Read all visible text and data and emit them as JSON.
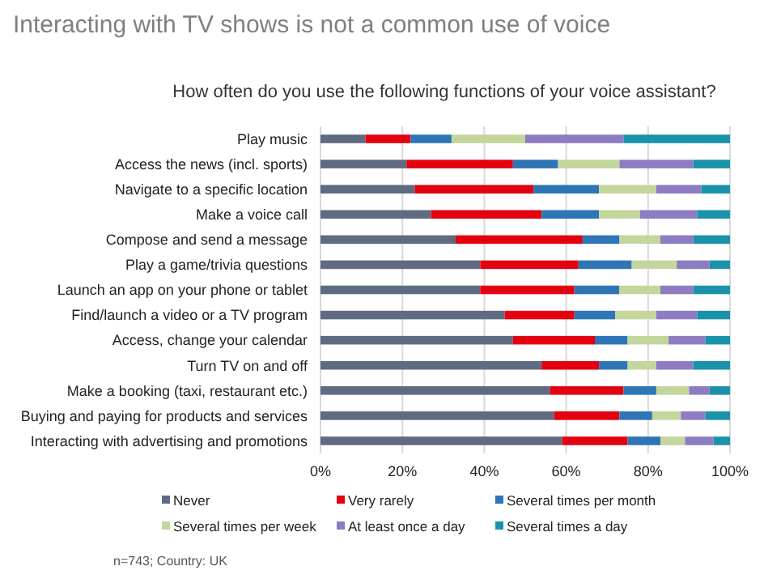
{
  "chart_data": {
    "type": "bar",
    "orientation": "horizontal",
    "stacked": true,
    "title": "Interacting with TV shows is not a common use of voice",
    "subtitle": "How often do you use the following functions of your voice assistant?",
    "categories": [
      "Play music",
      "Access the news (incl. sports)",
      "Navigate to a specific location",
      "Make a voice call",
      "Compose and send a message",
      "Play a game/trivia questions",
      "Launch an app on your phone or tablet",
      "Find/launch a video or a TV program",
      "Access, change your calendar",
      "Turn TV on and off",
      "Make a booking (taxi, restaurant etc.)",
      "Buying and paying for products and services",
      "Interacting with advertising and promotions"
    ],
    "series": [
      {
        "name": "Never",
        "color": "#5f6b82",
        "values": [
          11,
          21,
          23,
          27,
          33,
          39,
          39,
          45,
          47,
          54,
          56,
          57,
          59
        ]
      },
      {
        "name": "Very rarely",
        "color": "#e3000f",
        "values": [
          11,
          26,
          29,
          27,
          31,
          24,
          23,
          17,
          20,
          14,
          18,
          16,
          16
        ]
      },
      {
        "name": "Several times per month",
        "color": "#2e75b6",
        "values": [
          10,
          11,
          16,
          14,
          9,
          13,
          11,
          10,
          8,
          7,
          8,
          8,
          8
        ]
      },
      {
        "name": "Several times per week",
        "color": "#c3d69b",
        "values": [
          18,
          15,
          14,
          10,
          10,
          11,
          10,
          10,
          10,
          7,
          8,
          7,
          6
        ]
      },
      {
        "name": "At least once a day",
        "color": "#8e7cc3",
        "values": [
          24,
          18,
          11,
          14,
          8,
          8,
          8,
          10,
          9,
          9,
          5,
          6,
          7
        ]
      },
      {
        "name": "Several times a day",
        "color": "#1a93a8",
        "values": [
          26,
          9,
          7,
          8,
          9,
          5,
          9,
          8,
          6,
          9,
          5,
          6,
          4
        ]
      }
    ],
    "xlim": [
      0,
      100
    ],
    "xticks": [
      {
        "value": 0,
        "label": "0%"
      },
      {
        "value": 20,
        "label": "20%"
      },
      {
        "value": 40,
        "label": "40%"
      },
      {
        "value": 60,
        "label": "60%"
      },
      {
        "value": 80,
        "label": "80%"
      },
      {
        "value": 100,
        "label": "100%"
      }
    ],
    "grid": "x",
    "legend": "bottom",
    "annotations": [
      "n=743; Country: UK"
    ]
  }
}
